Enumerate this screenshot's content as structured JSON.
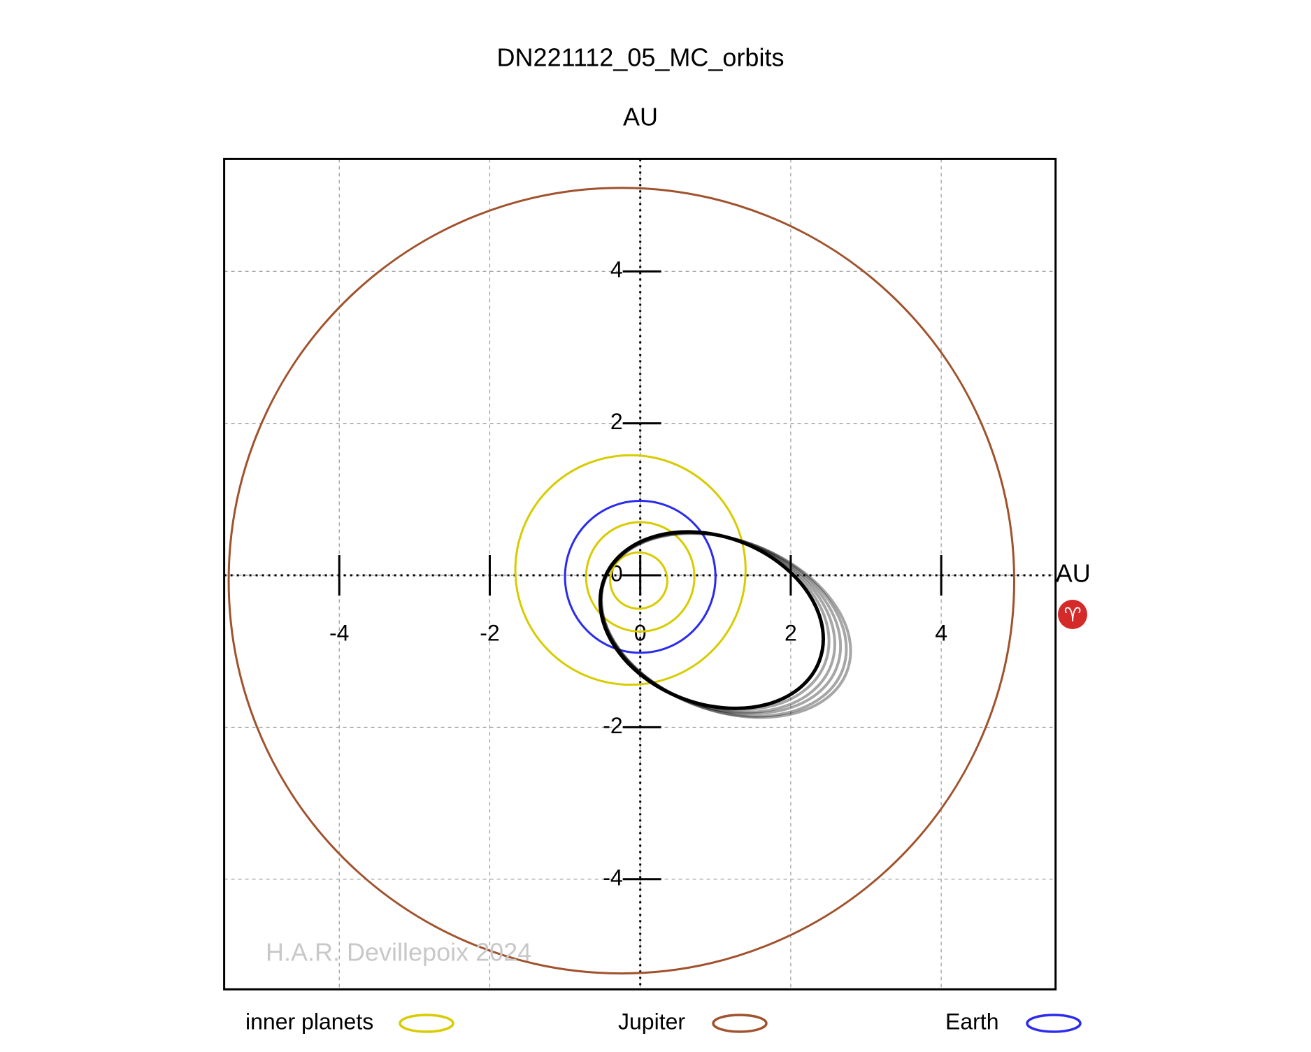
{
  "chart_data": {
    "type": "orbit",
    "title": "DN221112_05_MC_orbits",
    "x_label": "AU",
    "y_label": "AU",
    "xlim": [
      -5.53,
      5.52
    ],
    "ylim": [
      -5.45,
      5.48
    ],
    "xticks": [
      -4,
      -2,
      0,
      2,
      4
    ],
    "yticks": [
      -4,
      -2,
      0,
      2,
      4
    ],
    "grid": true,
    "series": [
      {
        "name": "inner planets",
        "color": "#d8cc00",
        "orbits": [
          {
            "cx": -0.02,
            "cy": -0.07,
            "rx": 0.38,
            "ry": 0.37,
            "angle": 0
          },
          {
            "cx": 0.0,
            "cy": -0.02,
            "rx": 0.72,
            "ry": 0.72,
            "angle": 0
          },
          {
            "cx": -0.13,
            "cy": 0.07,
            "rx": 1.53,
            "ry": 1.51,
            "angle": 0
          }
        ]
      },
      {
        "name": "Jupiter",
        "color": "#a0522d",
        "orbits": [
          {
            "cx": -0.25,
            "cy": -0.07,
            "rx": 5.22,
            "ry": 5.17,
            "angle": 0
          }
        ]
      },
      {
        "name": "Earth",
        "color": "#2b2bee",
        "orbits": [
          {
            "cx": 0.0,
            "cy": -0.02,
            "rx": 1.0,
            "ry": 1.0,
            "angle": 0
          }
        ]
      }
    ],
    "clones": {
      "color": "#000000",
      "orbits": [
        {
          "cx": 0.95,
          "cy": -0.59,
          "rx": 1.53,
          "ry": 1.1,
          "angle": -21
        },
        {
          "cx": 0.99,
          "cy": -0.6,
          "rx": 1.57,
          "ry": 1.1,
          "angle": -21
        },
        {
          "cx": 1.03,
          "cy": -0.62,
          "rx": 1.61,
          "ry": 1.11,
          "angle": -21
        },
        {
          "cx": 1.07,
          "cy": -0.63,
          "rx": 1.65,
          "ry": 1.11,
          "angle": -21
        },
        {
          "cx": 1.11,
          "cy": -0.65,
          "rx": 1.69,
          "ry": 1.12,
          "angle": -21
        },
        {
          "cx": 1.14,
          "cy": -0.66,
          "rx": 1.72,
          "ry": 1.12,
          "angle": -21
        }
      ]
    },
    "watermark": "H.A.R. Devillepoix 2024",
    "direction_symbol": "♈"
  }
}
